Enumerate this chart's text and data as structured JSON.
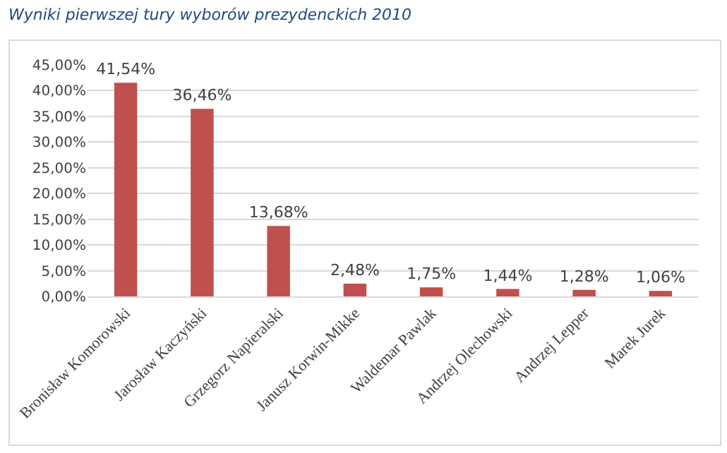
{
  "chart_data": {
    "type": "bar",
    "title": "Wyniki pierwszej tury wyborów prezydenckich 2010",
    "categories": [
      "Bronisław Komorowski",
      "Jarosław Kaczyński",
      "Grzegorz Napieralski",
      "Janusz Korwin-Mikke",
      "Waldemar Pawlak",
      "Andrzej Olechowski",
      "Andrzej Lepper",
      "Marek Jurek"
    ],
    "values": [
      41.54,
      36.46,
      13.68,
      2.48,
      1.75,
      1.44,
      1.28,
      1.06
    ],
    "value_labels": [
      "41,54%",
      "36,46%",
      "13,68%",
      "2,48%",
      "1,75%",
      "1,44%",
      "1,28%",
      "1,06%"
    ],
    "color": "#c0504d",
    "ylim": [
      0,
      45
    ],
    "yticks": [
      {
        "value": 0,
        "label": "0,00%"
      },
      {
        "value": 5,
        "label": "5,00%"
      },
      {
        "value": 10,
        "label": "10,00%"
      },
      {
        "value": 15,
        "label": "15,00%"
      },
      {
        "value": 20,
        "label": "20,00%"
      },
      {
        "value": 25,
        "label": "25,00%"
      },
      {
        "value": 30,
        "label": "30,00%"
      },
      {
        "value": 35,
        "label": "35,00%"
      },
      {
        "value": 40,
        "label": "40,00%"
      },
      {
        "value": 45,
        "label": "45,00%"
      }
    ],
    "grid": "y"
  }
}
